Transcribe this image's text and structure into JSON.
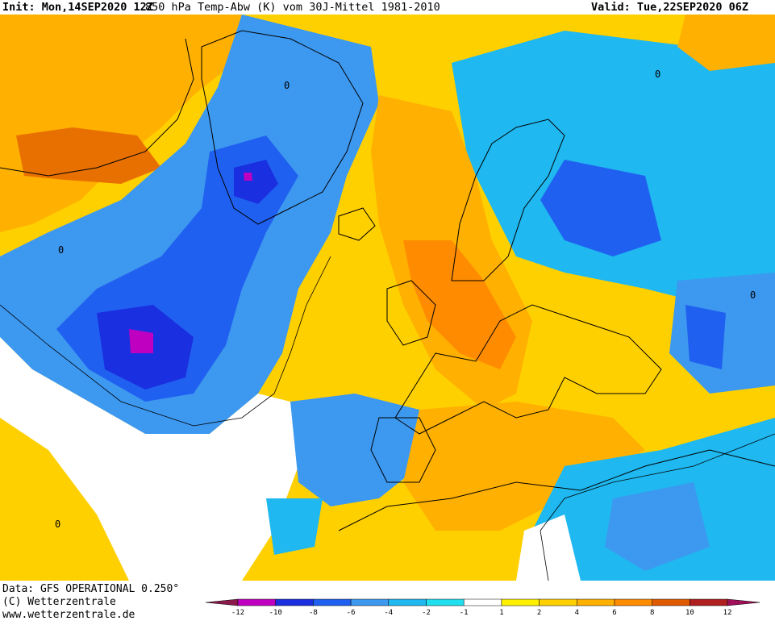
{
  "header": {
    "init": "Init: Mon,14SEP2020 12Z",
    "title": "850 hPa Temp-Abw (K) vom 30J-Mittel 1981-2010",
    "valid": "Valid: Tue,22SEP2020 06Z"
  },
  "footer": {
    "data_source": "Data: GFS OPERATIONAL 0.250°",
    "copyright": "(C) Wetterzentrale",
    "website": "www.wetterzentrale.de"
  },
  "legend": {
    "ticks": [
      "-12",
      "-10",
      "-8",
      "-6",
      "-4",
      "-2",
      "-1",
      "1",
      "2",
      "4",
      "6",
      "8",
      "10",
      "12"
    ],
    "colors": [
      "#8b1a4a",
      "#c000c0",
      "#1a2fe0",
      "#2060f0",
      "#3d98f0",
      "#1fb8f0",
      "#20e0f0",
      "#ffffff",
      "#fff000",
      "#ffd000",
      "#ffb000",
      "#ff8c00",
      "#e05a00",
      "#b02020",
      "#a0105a"
    ]
  },
  "map_labels": {
    "zero_contour": "0"
  }
}
